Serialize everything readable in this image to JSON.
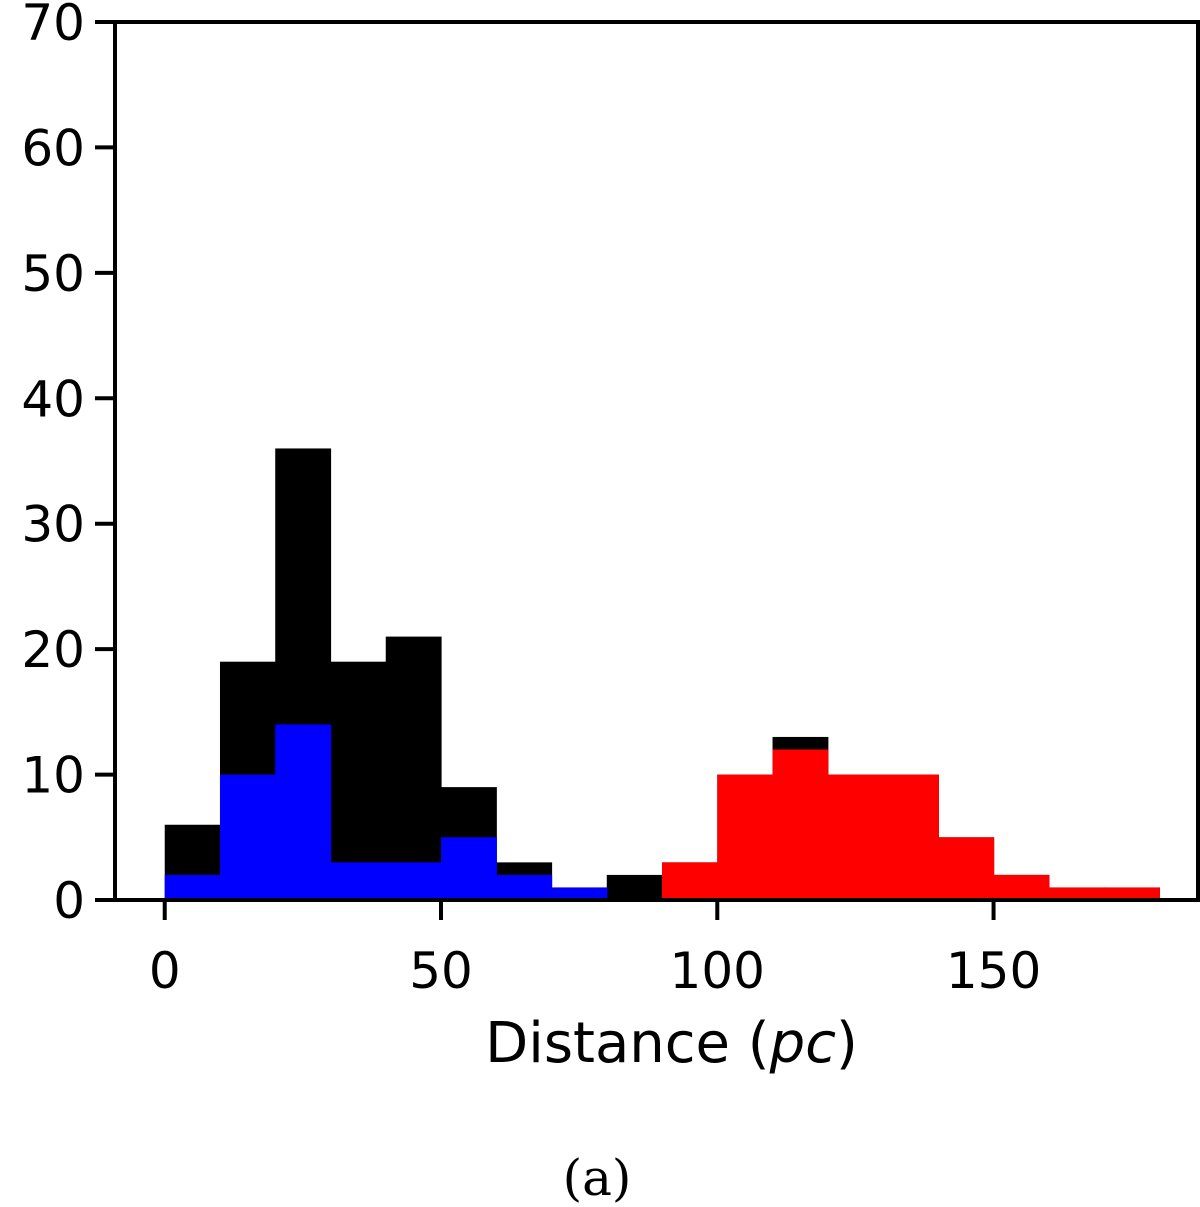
{
  "chart_data": {
    "type": "bar",
    "bin_edges": [
      0,
      10,
      20,
      30,
      40,
      50,
      60,
      70,
      80,
      90,
      100,
      110,
      120,
      130,
      140,
      150,
      160,
      170,
      180
    ],
    "x_ticks": [
      0,
      50,
      100,
      150
    ],
    "y_ticks": [
      0,
      10,
      20,
      30,
      40,
      50,
      60,
      70
    ],
    "xlim": [
      -9,
      187
    ],
    "ylim": [
      0,
      70
    ],
    "xlabel": {
      "pre": "Distance (",
      "italic": "pc",
      "post": ")"
    },
    "ylabel": "",
    "caption": "(a)",
    "grid": false,
    "series": [
      {
        "color": "#000000",
        "values": [
          6,
          19,
          36,
          19,
          21,
          9,
          3,
          1,
          2,
          3,
          10,
          13,
          10,
          10,
          5,
          2,
          1,
          1
        ]
      },
      {
        "color": "#0000ff",
        "values": [
          2,
          10,
          14,
          3,
          3,
          5,
          2,
          1,
          0,
          0,
          0,
          0,
          0,
          0,
          0,
          0,
          0,
          0
        ]
      },
      {
        "color": "#ff0000",
        "values": [
          0,
          0,
          0,
          0,
          0,
          0,
          0,
          0,
          0,
          3,
          10,
          12,
          10,
          10,
          5,
          2,
          1,
          1
        ]
      }
    ]
  }
}
